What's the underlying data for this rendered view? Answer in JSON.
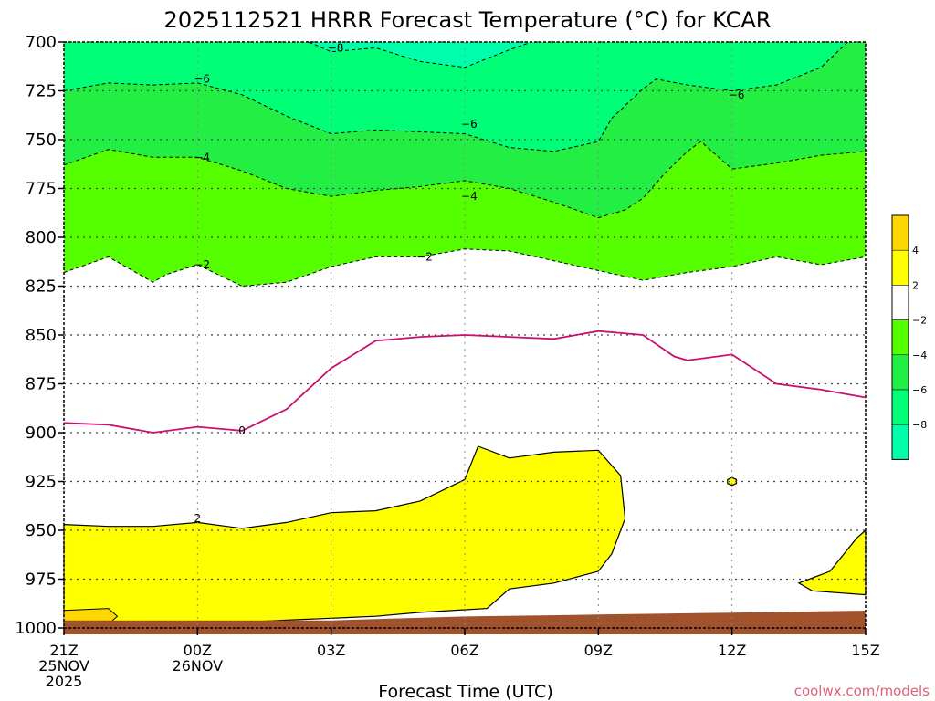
{
  "chart_data": {
    "type": "contour",
    "title": "2025112521 HRRR Forecast Temperature (°C) for KCAR",
    "xlabel": "Forecast Time (UTC)",
    "credit": "coolwx.com/models",
    "x_range": [
      0,
      18
    ],
    "y_range_hpa": [
      700,
      1000
    ],
    "y_ticks": [
      "700",
      "725",
      "750",
      "775",
      "800",
      "825",
      "850",
      "875",
      "900",
      "925",
      "950",
      "975",
      "1000"
    ],
    "x_ticks": [
      {
        "hour": 0,
        "lines": [
          "21Z",
          "25NOV",
          "2025"
        ]
      },
      {
        "hour": 3,
        "lines": [
          "00Z",
          "26NOV"
        ]
      },
      {
        "hour": 6,
        "lines": [
          "03Z"
        ]
      },
      {
        "hour": 9,
        "lines": [
          "06Z"
        ]
      },
      {
        "hour": 12,
        "lines": [
          "09Z"
        ]
      },
      {
        "hour": 15,
        "lines": [
          "12Z"
        ]
      },
      {
        "hour": 18,
        "lines": [
          "15Z"
        ]
      }
    ],
    "colorbar": {
      "labels": [
        "4",
        "2",
        "−2",
        "−4",
        "−6",
        "−8"
      ],
      "colors": [
        "#ffd700",
        "#ffff00",
        "#ffffff",
        "#55ff00",
        "#22ee44",
        "#00ff77",
        "#00ffaa"
      ]
    },
    "fill_colors": {
      "cold8": "#00ffaa",
      "cold6": "#00ff77",
      "cold4": "#22ee44",
      "cold2": "#55ff00",
      "warm2": "#ffff00",
      "warm4": "#ffd700",
      "ground": "#a0522d",
      "zero_line": "#c8106e"
    },
    "contour_labels": [
      {
        "text": "−8",
        "hour": 6.1,
        "p": 703
      },
      {
        "text": "−6",
        "hour": 3.1,
        "p": 719
      },
      {
        "text": "−6",
        "hour": 9.1,
        "p": 742
      },
      {
        "text": "−6",
        "hour": 15.1,
        "p": 727
      },
      {
        "text": "−4",
        "hour": 3.1,
        "p": 759
      },
      {
        "text": "−4",
        "hour": 9.1,
        "p": 779
      },
      {
        "text": "−2",
        "hour": 3.1,
        "p": 814
      },
      {
        "text": "−2",
        "hour": 8.1,
        "p": 810
      },
      {
        "text": "0",
        "hour": 4.0,
        "p": 899
      },
      {
        "text": "2",
        "hour": 3.0,
        "p": 944
      }
    ],
    "isotherms": {
      "m2": [
        [
          0,
          818
        ],
        [
          1,
          810
        ],
        [
          2,
          823
        ],
        [
          2.3,
          819
        ],
        [
          3,
          814
        ],
        [
          4,
          825
        ],
        [
          5,
          823
        ],
        [
          6,
          815
        ],
        [
          7,
          810
        ],
        [
          8,
          810
        ],
        [
          9,
          806
        ],
        [
          10,
          807
        ],
        [
          11,
          812
        ],
        [
          12,
          817
        ],
        [
          13,
          822
        ],
        [
          14,
          818
        ],
        [
          15,
          815
        ],
        [
          16,
          810
        ],
        [
          17,
          814
        ],
        [
          18,
          810
        ]
      ],
      "m4": [
        [
          0,
          763
        ],
        [
          1,
          755
        ],
        [
          2,
          759
        ],
        [
          3,
          759
        ],
        [
          4,
          766
        ],
        [
          5,
          775
        ],
        [
          6,
          779
        ],
        [
          7,
          776
        ],
        [
          8,
          774
        ],
        [
          9,
          771
        ],
        [
          10,
          775
        ],
        [
          11,
          782
        ],
        [
          12,
          790
        ],
        [
          12.6,
          786
        ],
        [
          13,
          780
        ],
        [
          13.5,
          767
        ],
        [
          14,
          756
        ],
        [
          14.3,
          751
        ],
        [
          15,
          765
        ],
        [
          16,
          762
        ],
        [
          17,
          758
        ],
        [
          18,
          756
        ]
      ],
      "m6": [
        [
          0,
          725
        ],
        [
          1,
          721
        ],
        [
          2,
          722
        ],
        [
          3,
          721
        ],
        [
          4,
          727
        ],
        [
          5,
          738
        ],
        [
          6,
          747
        ],
        [
          7,
          745
        ],
        [
          8,
          746
        ],
        [
          9,
          747
        ],
        [
          10,
          754
        ],
        [
          11,
          756
        ],
        [
          12,
          751
        ],
        [
          12.3,
          739
        ],
        [
          13,
          724
        ],
        [
          13.3,
          719
        ],
        [
          14,
          722
        ],
        [
          15,
          725
        ],
        [
          16,
          722
        ],
        [
          17,
          713
        ],
        [
          17.6,
          700
        ]
      ],
      "m8": [
        [
          5.5,
          700
        ],
        [
          6,
          705
        ],
        [
          7,
          703
        ],
        [
          8,
          710
        ],
        [
          9,
          713
        ],
        [
          10,
          704
        ],
        [
          10.5,
          700
        ]
      ],
      "zero": [
        [
          0,
          895
        ],
        [
          1,
          896
        ],
        [
          2,
          900
        ],
        [
          3,
          897
        ],
        [
          4,
          899
        ],
        [
          5,
          888
        ],
        [
          6,
          867
        ],
        [
          7,
          853
        ],
        [
          8,
          851
        ],
        [
          9,
          850
        ],
        [
          10,
          851
        ],
        [
          11,
          852
        ],
        [
          12,
          848
        ],
        [
          13,
          850
        ],
        [
          13.7,
          861
        ],
        [
          14,
          863
        ],
        [
          15,
          860
        ],
        [
          16,
          875
        ],
        [
          17,
          878
        ],
        [
          18,
          882
        ]
      ]
    },
    "warm_regions": [
      {
        "name": "main",
        "points": [
          [
            0,
            947
          ],
          [
            1,
            948
          ],
          [
            2,
            948
          ],
          [
            3,
            946
          ],
          [
            4,
            949
          ],
          [
            5,
            946
          ],
          [
            6,
            941
          ],
          [
            7,
            940
          ],
          [
            8,
            935
          ],
          [
            9,
            924
          ],
          [
            9.3,
            907
          ],
          [
            10,
            913
          ],
          [
            11,
            910
          ],
          [
            12,
            909
          ],
          [
            12.5,
            922
          ],
          [
            12.6,
            944
          ],
          [
            12.3,
            962
          ],
          [
            12,
            971
          ],
          [
            11,
            977
          ],
          [
            10,
            980
          ],
          [
            9.5,
            990
          ],
          [
            8,
            992
          ],
          [
            7,
            994
          ],
          [
            6,
            995
          ],
          [
            5,
            996
          ],
          [
            4,
            997
          ],
          [
            3,
            998
          ],
          [
            2.8,
            1000
          ],
          [
            0,
            1000
          ]
        ]
      },
      {
        "name": "right",
        "points": [
          [
            16.5,
            977
          ],
          [
            17.2,
            971
          ],
          [
            17.8,
            954
          ],
          [
            18,
            950
          ],
          [
            18,
            983
          ],
          [
            16.8,
            981
          ]
        ]
      },
      {
        "name": "dot",
        "points": [
          [
            15,
            923
          ],
          [
            15.1,
            924
          ],
          [
            15.1,
            926
          ],
          [
            15,
            927
          ],
          [
            14.9,
            926
          ],
          [
            14.9,
            924
          ]
        ]
      }
    ],
    "warm4_region": [
      [
        0,
        991
      ],
      [
        1,
        990
      ],
      [
        1.2,
        994
      ],
      [
        1,
        998
      ],
      [
        0,
        999
      ]
    ],
    "ground_profile": [
      [
        0,
        998
      ],
      [
        6,
        998
      ],
      [
        9,
        996
      ],
      [
        12,
        995
      ],
      [
        15,
        994
      ],
      [
        18,
        993
      ]
    ]
  }
}
